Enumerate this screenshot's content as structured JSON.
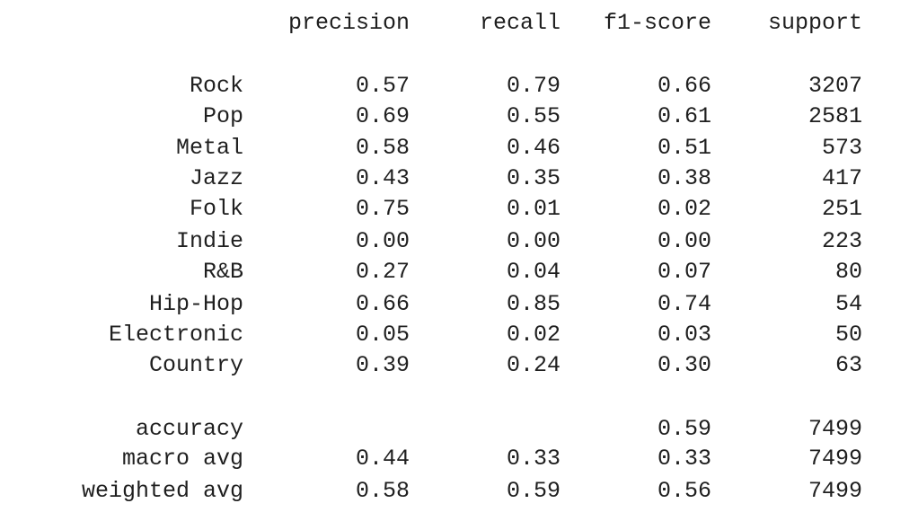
{
  "report": {
    "headers": {
      "precision": "precision",
      "recall": "recall",
      "f1": "f1-score",
      "support": "support"
    },
    "classes": [
      {
        "label": "Rock",
        "precision": "0.57",
        "recall": "0.79",
        "f1": "0.66",
        "support": "3207"
      },
      {
        "label": "Pop",
        "precision": "0.69",
        "recall": "0.55",
        "f1": "0.61",
        "support": "2581"
      },
      {
        "label": "Metal",
        "precision": "0.58",
        "recall": "0.46",
        "f1": "0.51",
        "support": "573"
      },
      {
        "label": "Jazz",
        "precision": "0.43",
        "recall": "0.35",
        "f1": "0.38",
        "support": "417"
      },
      {
        "label": "Folk",
        "precision": "0.75",
        "recall": "0.01",
        "f1": "0.02",
        "support": "251"
      },
      {
        "label": "Indie",
        "precision": "0.00",
        "recall": "0.00",
        "f1": "0.00",
        "support": "223"
      },
      {
        "label": "R&B",
        "precision": "0.27",
        "recall": "0.04",
        "f1": "0.07",
        "support": "80"
      },
      {
        "label": "Hip-Hop",
        "precision": "0.66",
        "recall": "0.85",
        "f1": "0.74",
        "support": "54"
      },
      {
        "label": "Electronic",
        "precision": "0.05",
        "recall": "0.02",
        "f1": "0.03",
        "support": "50"
      },
      {
        "label": "Country",
        "precision": "0.39",
        "recall": "0.24",
        "f1": "0.30",
        "support": "63"
      }
    ],
    "summary": [
      {
        "label": "accuracy",
        "precision": "",
        "recall": "",
        "f1": "0.59",
        "support": "7499"
      },
      {
        "label": "macro avg",
        "precision": "0.44",
        "recall": "0.33",
        "f1": "0.33",
        "support": "7499"
      },
      {
        "label": "weighted avg",
        "precision": "0.58",
        "recall": "0.59",
        "f1": "0.56",
        "support": "7499"
      }
    ]
  }
}
